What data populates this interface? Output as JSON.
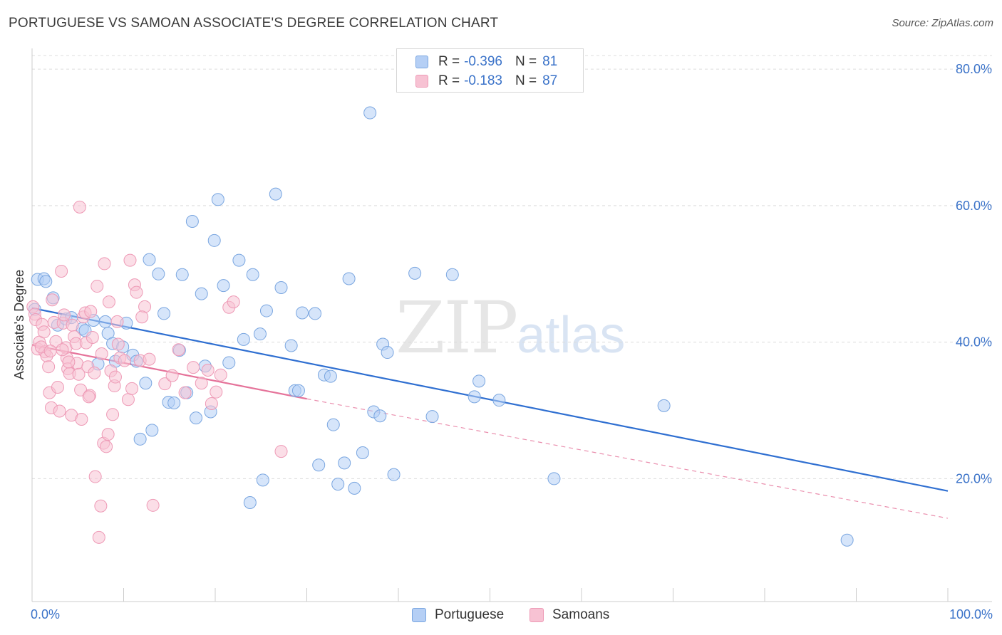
{
  "title": "PORTUGUESE VS SAMOAN ASSOCIATE'S DEGREE CORRELATION CHART",
  "source": "Source: ZipAtlas.com",
  "watermark": {
    "zip": "ZIP",
    "atlas": "atlas"
  },
  "legend": {
    "r_label": "R =",
    "n_label": "N =",
    "portuguese": {
      "r": "-0.396",
      "n": "81"
    },
    "samoans": {
      "r": "-0.183",
      "n": "87"
    }
  },
  "bottom_legend": {
    "portuguese": "Portuguese",
    "samoans": "Samoans"
  },
  "colors": {
    "portuguese_fill": "#b5cff5",
    "portuguese_stroke": "#7aa6e0",
    "portuguese_line": "#2f6fd1",
    "samoans_fill": "#f7c2d3",
    "samoans_stroke": "#ee9ab6",
    "samoans_line": "#e5739a",
    "tick_label": "#3b73c9",
    "grid": "#dcdcdc"
  },
  "chart_data": {
    "type": "scatter",
    "title": "PORTUGUESE VS SAMOAN ASSOCIATE'S DEGREE CORRELATION CHART",
    "xlabel": "",
    "ylabel": "Associate's Degree",
    "xlim": [
      0,
      100
    ],
    "ylim": [
      2,
      82
    ],
    "x_tick_labels": [
      {
        "value": 0,
        "label": "0.0%"
      },
      {
        "value": 100,
        "label": "100.0%"
      }
    ],
    "x_minor_ticks": [
      10,
      20,
      30,
      40,
      50,
      60,
      70,
      80,
      90,
      100
    ],
    "y_ticks": [
      {
        "value": 20,
        "label": "20.0%"
      },
      {
        "value": 40,
        "label": "40.0%"
      },
      {
        "value": 60,
        "label": "60.0%"
      },
      {
        "value": 80,
        "label": "80.0%"
      }
    ],
    "grid": true,
    "series": [
      {
        "name": "Portuguese",
        "trend": {
          "x": [
            0,
            100
          ],
          "y": [
            45.0,
            18.2
          ],
          "style": "solid"
        },
        "points": [
          [
            0.3,
            44.8
          ],
          [
            0.6,
            49.2
          ],
          [
            1.3,
            49.3
          ],
          [
            1.5,
            48.9
          ],
          [
            2.3,
            46.5
          ],
          [
            2.8,
            42.5
          ],
          [
            3.7,
            43.4
          ],
          [
            4.3,
            43.6
          ],
          [
            5.5,
            42.0
          ],
          [
            5.8,
            41.7
          ],
          [
            6.7,
            43.2
          ],
          [
            7.2,
            36.8
          ],
          [
            8.0,
            43.0
          ],
          [
            8.3,
            41.3
          ],
          [
            8.8,
            39.8
          ],
          [
            9.1,
            37.2
          ],
          [
            9.9,
            39.3
          ],
          [
            10.3,
            42.8
          ],
          [
            11.0,
            38.1
          ],
          [
            11.4,
            37.2
          ],
          [
            11.8,
            25.8
          ],
          [
            12.4,
            34.0
          ],
          [
            12.8,
            52.1
          ],
          [
            13.1,
            27.1
          ],
          [
            13.8,
            50.0
          ],
          [
            14.4,
            44.2
          ],
          [
            14.9,
            31.2
          ],
          [
            15.5,
            31.1
          ],
          [
            16.1,
            38.8
          ],
          [
            16.4,
            49.9
          ],
          [
            16.9,
            32.6
          ],
          [
            17.5,
            57.7
          ],
          [
            17.9,
            28.9
          ],
          [
            18.5,
            47.1
          ],
          [
            18.9,
            36.5
          ],
          [
            19.5,
            29.8
          ],
          [
            19.9,
            54.9
          ],
          [
            20.3,
            60.9
          ],
          [
            20.9,
            48.3
          ],
          [
            21.5,
            37.0
          ],
          [
            22.6,
            52.0
          ],
          [
            23.1,
            40.4
          ],
          [
            24.1,
            49.9
          ],
          [
            24.9,
            41.2
          ],
          [
            25.2,
            19.8
          ],
          [
            25.6,
            44.6
          ],
          [
            26.6,
            61.7
          ],
          [
            27.2,
            48.0
          ],
          [
            28.3,
            39.5
          ],
          [
            28.7,
            32.9
          ],
          [
            29.1,
            32.9
          ],
          [
            29.5,
            44.3
          ],
          [
            30.9,
            44.2
          ],
          [
            31.3,
            22.0
          ],
          [
            31.9,
            35.2
          ],
          [
            32.6,
            35.0
          ],
          [
            32.9,
            27.9
          ],
          [
            33.4,
            19.2
          ],
          [
            34.1,
            22.3
          ],
          [
            34.6,
            49.3
          ],
          [
            35.2,
            18.6
          ],
          [
            36.1,
            23.8
          ],
          [
            36.9,
            73.6
          ],
          [
            37.3,
            29.8
          ],
          [
            38.0,
            29.2
          ],
          [
            38.3,
            39.7
          ],
          [
            38.8,
            38.5
          ],
          [
            39.5,
            20.6
          ],
          [
            23.8,
            16.5
          ],
          [
            41.8,
            50.1
          ],
          [
            43.7,
            29.1
          ],
          [
            45.9,
            49.9
          ],
          [
            48.3,
            32.0
          ],
          [
            48.8,
            34.3
          ],
          [
            51.0,
            31.5
          ],
          [
            57.0,
            20.0
          ],
          [
            69.0,
            30.7
          ],
          [
            89.0,
            11.0
          ]
        ]
      },
      {
        "name": "Samoans",
        "trend": {
          "x": [
            0,
            30
          ],
          "y": [
            39.6,
            31.7
          ],
          "style": "solid",
          "extension": {
            "x": [
              30,
              100
            ],
            "y": [
              31.7,
              14.2
            ],
            "style": "dashed"
          }
        },
        "points": [
          [
            0.1,
            45.2
          ],
          [
            0.3,
            44.1
          ],
          [
            0.4,
            43.3
          ],
          [
            0.6,
            39.0
          ],
          [
            0.8,
            40.0
          ],
          [
            1.1,
            42.6
          ],
          [
            1.3,
            41.5
          ],
          [
            1.4,
            38.6
          ],
          [
            1.6,
            38.0
          ],
          [
            1.8,
            36.4
          ],
          [
            1.9,
            32.6
          ],
          [
            2.1,
            30.4
          ],
          [
            2.2,
            46.2
          ],
          [
            2.4,
            42.9
          ],
          [
            2.6,
            40.1
          ],
          [
            2.8,
            33.4
          ],
          [
            3.0,
            29.9
          ],
          [
            3.2,
            50.4
          ],
          [
            3.4,
            42.8
          ],
          [
            3.5,
            44.0
          ],
          [
            3.7,
            39.2
          ],
          [
            3.8,
            37.7
          ],
          [
            3.9,
            36.1
          ],
          [
            4.1,
            35.4
          ],
          [
            4.3,
            29.3
          ],
          [
            4.4,
            42.5
          ],
          [
            4.6,
            40.8
          ],
          [
            4.8,
            39.8
          ],
          [
            4.9,
            36.9
          ],
          [
            5.1,
            35.3
          ],
          [
            5.3,
            33.0
          ],
          [
            5.4,
            28.7
          ],
          [
            5.2,
            59.8
          ],
          [
            5.6,
            43.7
          ],
          [
            5.8,
            44.3
          ],
          [
            5.9,
            39.9
          ],
          [
            6.1,
            36.4
          ],
          [
            6.3,
            32.2
          ],
          [
            6.4,
            44.5
          ],
          [
            6.6,
            40.7
          ],
          [
            6.8,
            35.5
          ],
          [
            6.9,
            20.3
          ],
          [
            7.1,
            48.2
          ],
          [
            7.3,
            11.4
          ],
          [
            7.5,
            16.0
          ],
          [
            7.6,
            38.3
          ],
          [
            7.8,
            25.2
          ],
          [
            7.9,
            51.5
          ],
          [
            8.1,
            24.7
          ],
          [
            8.3,
            26.5
          ],
          [
            8.4,
            45.9
          ],
          [
            8.6,
            35.8
          ],
          [
            8.8,
            29.4
          ],
          [
            9.0,
            33.6
          ],
          [
            9.1,
            34.9
          ],
          [
            9.3,
            43.0
          ],
          [
            9.4,
            39.7
          ],
          [
            9.6,
            37.7
          ],
          [
            10.1,
            37.3
          ],
          [
            10.5,
            31.6
          ],
          [
            10.7,
            52.0
          ],
          [
            10.9,
            33.2
          ],
          [
            11.2,
            48.4
          ],
          [
            11.4,
            47.3
          ],
          [
            11.8,
            37.3
          ],
          [
            12.3,
            45.2
          ],
          [
            12.8,
            37.5
          ],
          [
            13.2,
            16.1
          ],
          [
            14.5,
            33.9
          ],
          [
            15.3,
            35.1
          ],
          [
            16.0,
            38.9
          ],
          [
            16.7,
            32.6
          ],
          [
            17.6,
            36.3
          ],
          [
            18.5,
            34.0
          ],
          [
            19.2,
            35.9
          ],
          [
            19.6,
            31.0
          ],
          [
            20.1,
            32.7
          ],
          [
            20.6,
            35.2
          ],
          [
            21.5,
            45.1
          ],
          [
            22.0,
            45.9
          ],
          [
            27.2,
            24.0
          ],
          [
            12.0,
            43.7
          ],
          [
            1.0,
            39.3
          ],
          [
            2.0,
            38.7
          ],
          [
            3.3,
            38.9
          ],
          [
            4.0,
            37.1
          ],
          [
            6.2,
            32.0
          ]
        ]
      }
    ]
  }
}
